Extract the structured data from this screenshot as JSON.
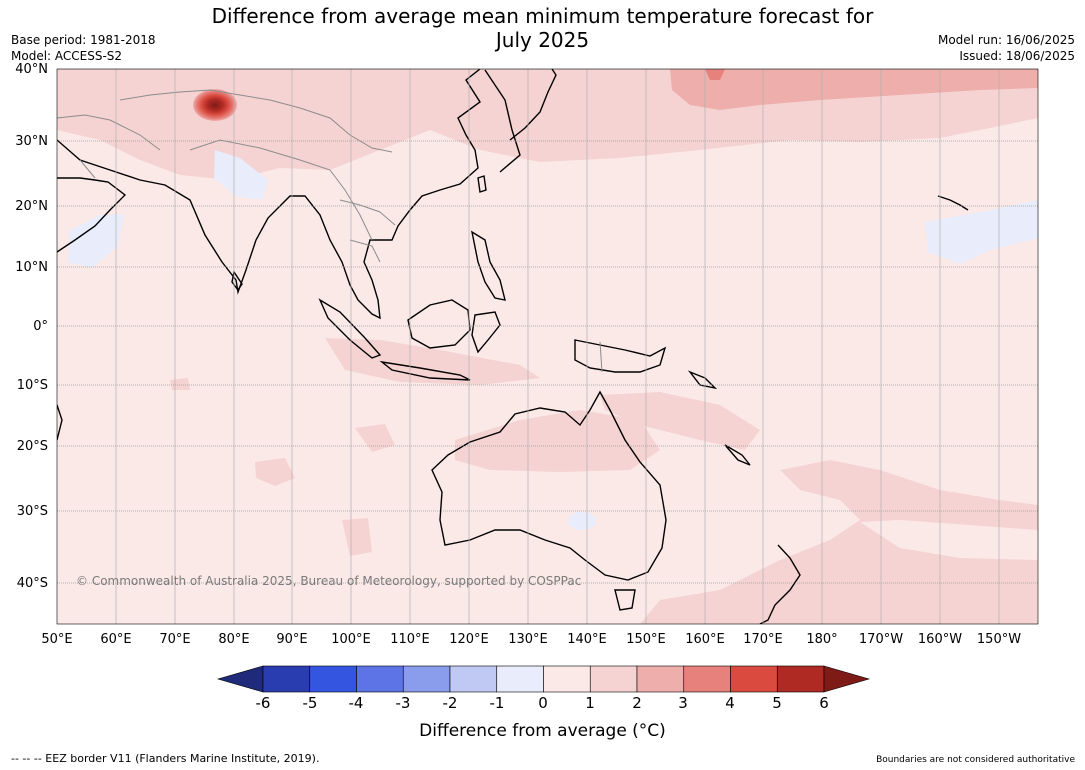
{
  "title_line1": "Difference from average mean minimum temperature forecast for",
  "title_line2": "July 2025",
  "base_period": "Base period: 1981-2018",
  "model": "Model: ACCESS-S2",
  "model_run": "Model run: 16/06/2025",
  "issued": "Issued: 18/06/2025",
  "lat_labels": [
    "40°N",
    "30°N",
    "20°N",
    "10°N",
    "0°",
    "10°S",
    "20°S",
    "30°S",
    "40°S"
  ],
  "lon_labels": [
    "50°E",
    "60°E",
    "70°E",
    "80°E",
    "90°E",
    "100°E",
    "110°E",
    "120°E",
    "130°E",
    "140°E",
    "150°E",
    "160°E",
    "170°E",
    "180°",
    "170°W",
    "160°W",
    "150°W"
  ],
  "copyright": "© Commonwealth of Australia 2025, Bureau of Meteorology, supported by COSPPac",
  "colorbar": {
    "ticks": [
      "-6",
      "-5",
      "-4",
      "-3",
      "-2",
      "-1",
      "0",
      "1",
      "2",
      "3",
      "4",
      "5",
      "6"
    ],
    "colors": [
      "#1f2b7a",
      "#2a3db0",
      "#3355e0",
      "#5c74e6",
      "#8a9cec",
      "#c0c8f4",
      "#e8ecfb",
      "#fbe9e8",
      "#f5d3d2",
      "#eeaeab",
      "#e6817c",
      "#da4a3f",
      "#ae2a23",
      "#7e1b17"
    ],
    "title": "Difference from average (°C)"
  },
  "footer_left": "--  --  -- EEZ border V11 (Flanders Marine Institute, 2019).",
  "footer_right": "Boundaries are not considered authoritative"
}
